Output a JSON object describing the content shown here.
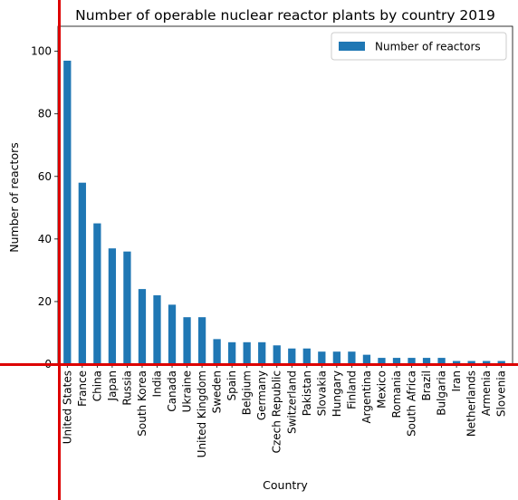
{
  "chart_data": {
    "type": "bar",
    "title": "Number of operable nuclear reactor plants by country 2019",
    "xlabel": "Country",
    "ylabel": "Number of reactors",
    "ylim": [
      0,
      108
    ],
    "yticks": [
      0,
      20,
      40,
      60,
      80,
      100
    ],
    "grid": false,
    "legend": {
      "placement": "top-right",
      "entries": [
        "Number of reactors"
      ]
    },
    "categories": [
      "United States",
      "France",
      "China",
      "Japan",
      "Russia",
      "South Korea",
      "India",
      "Canada",
      "Ukraine",
      "United Kingdom",
      "Sweden",
      "Spain",
      "Belgium",
      "Germany",
      "Czech Republic",
      "Switzerland",
      "Pakistan",
      "Slovakia",
      "Hungary",
      "Finland",
      "Argentina",
      "Mexico",
      "Romania",
      "South Africa",
      "Brazil",
      "Bulgaria",
      "Iran",
      "Netherlands",
      "Armenia",
      "Slovenia"
    ],
    "series": [
      {
        "name": "Number of reactors",
        "color": "#1f77b4",
        "values": [
          97,
          58,
          45,
          37,
          36,
          24,
          22,
          19,
          15,
          15,
          8,
          7,
          7,
          7,
          6,
          5,
          5,
          4,
          4,
          4,
          3,
          2,
          2,
          2,
          2,
          2,
          1,
          1,
          1,
          1
        ]
      }
    ],
    "highlight_lines_color": "#dd0000"
  }
}
